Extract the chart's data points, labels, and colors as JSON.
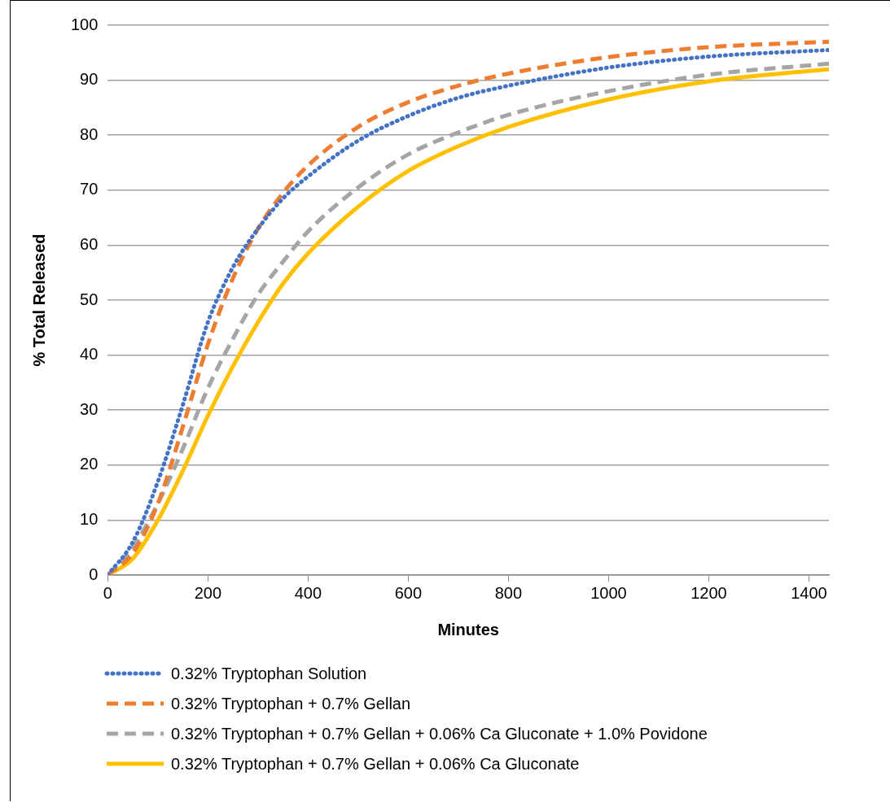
{
  "chart_data": {
    "type": "line",
    "xlabel": "Minutes",
    "ylabel": "% Total Released",
    "xlim": [
      0,
      1440
    ],
    "xticks": [
      0,
      200,
      400,
      600,
      800,
      1000,
      1200,
      1400
    ],
    "ylim": [
      0,
      100
    ],
    "yticks": [
      0,
      10,
      20,
      30,
      40,
      50,
      60,
      70,
      80,
      90,
      100
    ],
    "grid": "y",
    "legend": "bottom",
    "marker": "none",
    "series": [
      {
        "name": "0.32% Tryptophan Solution",
        "color": "#4472c4",
        "line_style": "dotted",
        "x": [
          0,
          50,
          100,
          150,
          200,
          250,
          300,
          350,
          400,
          500,
          600,
          700,
          800,
          1000,
          1200,
          1440
        ],
        "values": [
          0,
          6,
          17,
          31,
          46,
          56,
          63,
          68.5,
          72.5,
          79,
          83.5,
          86.8,
          89,
          92.3,
          94.3,
          95.5
        ]
      },
      {
        "name": "0.32% Tryptophan + 0.7% Gellan",
        "color": "#ed7d31",
        "line_style": "dashed",
        "x": [
          0,
          50,
          100,
          150,
          200,
          250,
          300,
          350,
          400,
          500,
          600,
          700,
          800,
          1000,
          1200,
          1440
        ],
        "values": [
          0,
          4,
          13,
          27,
          42,
          54,
          63,
          69.5,
          74.5,
          81.5,
          86,
          89,
          91.2,
          94.2,
          96,
          97
        ]
      },
      {
        "name": "0.32% Tryptophan + 0.7% Gellan + 0.06% Ca Gluconate + 1.0% Povidone",
        "color": "#a5a5a5",
        "line_style": "dashed",
        "x": [
          0,
          50,
          100,
          150,
          200,
          250,
          300,
          350,
          400,
          500,
          600,
          700,
          800,
          1000,
          1200,
          1440
        ],
        "values": [
          0,
          5,
          13,
          23,
          34,
          43,
          51,
          57,
          62.5,
          70.5,
          76.5,
          80.5,
          83.7,
          88,
          91,
          93
        ]
      },
      {
        "name": "0.32% Tryptophan + 0.7% Gellan + 0.06% Ca Gluconate",
        "color": "#ffc000",
        "line_style": "solid",
        "x": [
          0,
          50,
          100,
          150,
          200,
          250,
          300,
          350,
          400,
          500,
          600,
          700,
          800,
          1000,
          1200,
          1440
        ],
        "values": [
          0,
          3,
          10,
          19,
          29,
          38,
          46,
          53,
          58.5,
          67,
          73.5,
          78,
          81.5,
          86.5,
          89.8,
          92
        ]
      }
    ]
  }
}
